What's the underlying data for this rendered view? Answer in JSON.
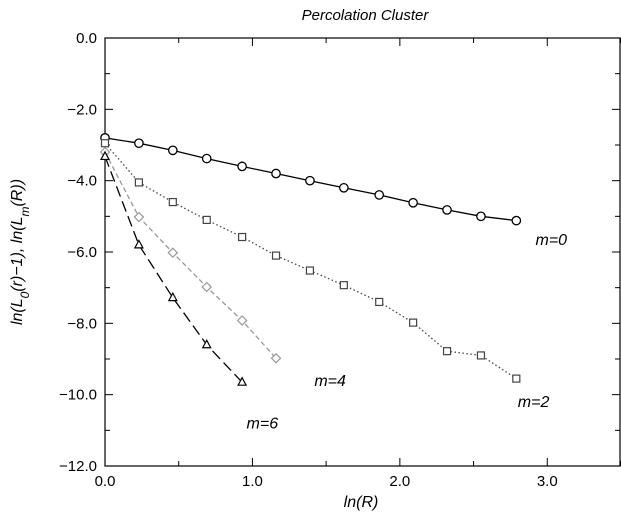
{
  "chart_data": {
    "type": "line",
    "title": "Percolation Cluster",
    "xlabel": "ln(R)",
    "ylabel": "ln(L0(r)−1), ln(Lm(R))",
    "xlim": [
      0,
      3.5
    ],
    "ylim": [
      -12,
      0
    ],
    "x_ticks": [
      {
        "value": 0,
        "label": "0.0"
      },
      {
        "value": 1,
        "label": "1.0"
      },
      {
        "value": 2,
        "label": "2.0"
      },
      {
        "value": 3,
        "label": "3.0"
      }
    ],
    "y_ticks": [
      {
        "value": 0,
        "label": "0.0"
      },
      {
        "value": -2,
        "label": "−2.0"
      },
      {
        "value": -4,
        "label": "−4.0"
      },
      {
        "value": -6,
        "label": "−6.0"
      },
      {
        "value": -8,
        "label": "−8.0"
      },
      {
        "value": -10,
        "label": "−10.0"
      },
      {
        "value": -12,
        "label": "−12.0"
      }
    ],
    "grid": false,
    "series": [
      {
        "name": "m=0",
        "marker": "circle",
        "line": "solid",
        "color": "#000000",
        "x": [
          0.0,
          0.23,
          0.46,
          0.69,
          0.93,
          1.16,
          1.39,
          1.62,
          1.86,
          2.09,
          2.32,
          2.55,
          2.79
        ],
        "y": [
          -2.8,
          -2.95,
          -3.15,
          -3.38,
          -3.6,
          -3.8,
          -4.0,
          -4.2,
          -4.4,
          -4.62,
          -4.82,
          -5.0,
          -5.12
        ]
      },
      {
        "name": "m=2",
        "marker": "square",
        "line": "dotted",
        "color": "#444444",
        "x": [
          0.0,
          0.23,
          0.46,
          0.69,
          0.93,
          1.16,
          1.39,
          1.62,
          1.86,
          2.09,
          2.32,
          2.55,
          2.79
        ],
        "y": [
          -2.95,
          -4.05,
          -4.6,
          -5.1,
          -5.58,
          -6.1,
          -6.52,
          -6.93,
          -7.4,
          -7.98,
          -8.78,
          -8.9,
          -9.55
        ]
      },
      {
        "name": "m=4",
        "marker": "diamond",
        "line": "dashed",
        "color": "#999999",
        "x": [
          0.0,
          0.23,
          0.46,
          0.69,
          0.93,
          1.16
        ],
        "y": [
          -3.2,
          -5.02,
          -6.02,
          -6.98,
          -7.92,
          -8.98
        ]
      },
      {
        "name": "m=6",
        "marker": "triangle",
        "line": "longdash",
        "color": "#000000",
        "x": [
          0.0,
          0.23,
          0.46,
          0.69,
          0.93
        ],
        "y": [
          -3.32,
          -5.8,
          -7.28,
          -8.6,
          -9.65
        ]
      }
    ],
    "annotations": [
      {
        "text": "m=0",
        "x": 2.92,
        "y": -5.8
      },
      {
        "text": "m=2",
        "x": 2.8,
        "y": -10.35
      },
      {
        "text": "m=4",
        "x": 1.42,
        "y": -9.75
      },
      {
        "text": "m=6",
        "x": 0.96,
        "y": -10.95
      }
    ]
  }
}
